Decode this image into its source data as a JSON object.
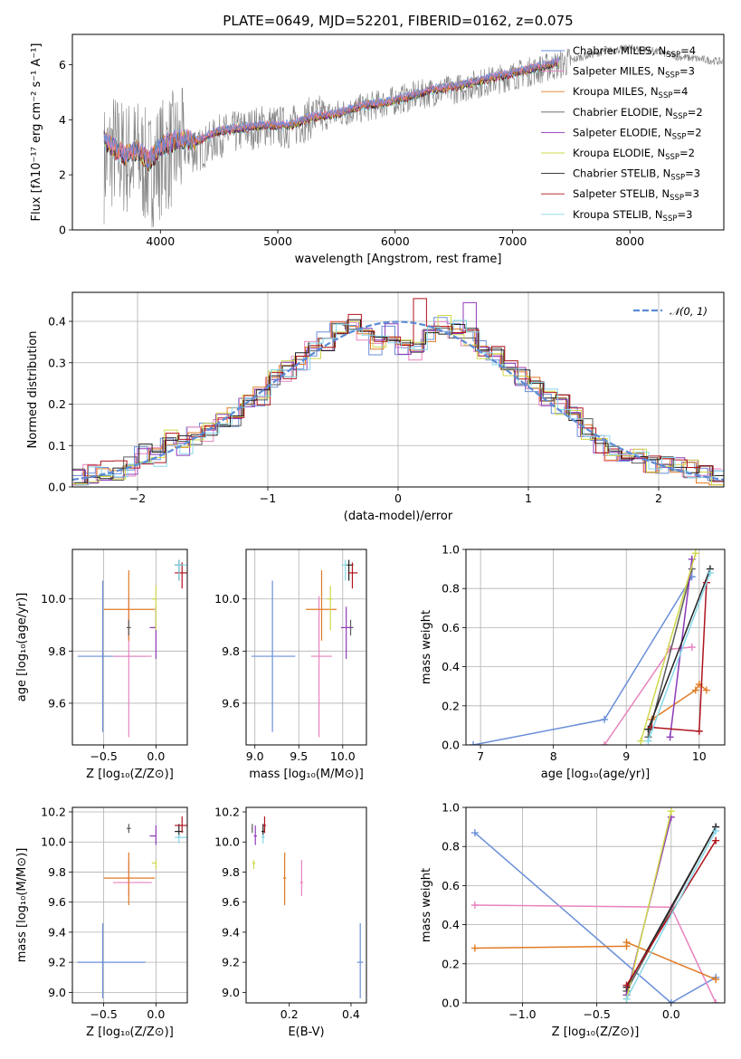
{
  "figure_title": "PLATE=0649, MJD=52201, FIBERID=0162, z=0.075",
  "colors": {
    "Chabrier MILES": "#6a8fd8",
    "Salpeter MILES": "#e883bf",
    "Kroupa MILES": "#e07b24",
    "Chabrier ELODIE": "#5a5a5a",
    "Salpeter ELODIE": "#8d3ab8",
    "Kroupa ELODIE": "#cfd84a",
    "Chabrier STELIB": "#222222",
    "Salpeter STELIB": "#b0141e",
    "Kroupa STELIB": "#86d8ea",
    "data": "#808080"
  },
  "chart_data": [
    {
      "id": "spectrum",
      "type": "line",
      "title": "PLATE=0649, MJD=52201, FIBERID=0162, z=0.075",
      "xlabel": "wavelength [Angstrom, rest frame]",
      "ylabel": "Flux [fλ10⁻¹⁷ erg cm⁻² s⁻¹ A⁻¹]",
      "xlim": [
        3250,
        8800
      ],
      "ylim": [
        0,
        7.1
      ],
      "xticks": [
        4000,
        5000,
        6000,
        7000,
        8000
      ],
      "yticks": [
        0,
        2,
        4,
        6
      ],
      "grid": false,
      "legend_position": "right",
      "legend": [
        "Chabrier MILES, N_SSP=4",
        "Salpeter MILES, N_SSP=3",
        "Kroupa MILES, N_SSP=4",
        "Chabrier ELODIE, N_SSP=2",
        "Salpeter ELODIE, N_SSP=2",
        "Kroupa ELODIE, N_SSP=2",
        "Chabrier STELIB, N_SSP=3",
        "Salpeter STELIB, N_SSP=3",
        "Kroupa STELIB, N_SSP=3"
      ],
      "data_series": {
        "name": "data",
        "x": [
          3520,
          3600,
          3700,
          3800,
          3900,
          4000,
          4100,
          4200,
          4300,
          4500,
          4700,
          4900,
          5100,
          5300,
          5500,
          5700,
          5900,
          6100,
          6300,
          6500,
          6700,
          6900,
          7100,
          7300,
          7400,
          7600,
          7800,
          8000,
          8200,
          8400,
          8600,
          8800
        ],
        "y": [
          2.4,
          2.9,
          2.6,
          2.7,
          2.1,
          2.6,
          2.9,
          3.0,
          2.8,
          3.4,
          3.6,
          3.8,
          3.7,
          4.1,
          4.2,
          4.4,
          4.6,
          4.8,
          5.0,
          5.1,
          5.3,
          5.5,
          5.7,
          5.9,
          6.0,
          6.3,
          6.5,
          6.6,
          6.5,
          6.3,
          6.2,
          6.1
        ]
      },
      "model_series_x": [
        3520,
        3600,
        3700,
        3800,
        3900,
        4000,
        4100,
        4200,
        4300,
        4500,
        4700,
        4900,
        5100,
        5300,
        5500,
        5700,
        5900,
        6100,
        6300,
        6500,
        6700,
        6900,
        7100,
        7300,
        7400
      ],
      "model_series_y": [
        3.3,
        3.0,
        2.7,
        2.9,
        2.5,
        3.0,
        3.2,
        3.3,
        3.2,
        3.6,
        3.7,
        3.8,
        3.8,
        4.1,
        4.2,
        4.5,
        4.6,
        4.8,
        5.1,
        5.2,
        5.4,
        5.6,
        5.8,
        6.0,
        6.1
      ]
    },
    {
      "id": "residuals",
      "type": "histogram",
      "xlabel": "(data-model)/error",
      "ylabel": "Normed distribution",
      "xlim": [
        -2.5,
        2.5
      ],
      "ylim": [
        0,
        0.47
      ],
      "xticks": [
        -2,
        -1,
        0,
        1,
        2
      ],
      "yticks": [
        0.0,
        0.1,
        0.2,
        0.3,
        0.4
      ],
      "grid": true,
      "legend_position": "top-right",
      "legend": [
        "𝒩(0, 1)"
      ],
      "bin_width": 0.1,
      "bin_start": -2.5,
      "bins_blue": [
        0.02,
        0.03,
        0.04,
        0.04,
        0.05,
        0.08,
        0.07,
        0.12,
        0.1,
        0.12,
        0.13,
        0.17,
        0.17,
        0.21,
        0.22,
        0.26,
        0.28,
        0.3,
        0.33,
        0.35,
        0.39,
        0.4,
        0.37,
        0.34,
        0.37,
        0.34,
        0.33,
        0.37,
        0.39,
        0.38,
        0.36,
        0.33,
        0.32,
        0.28,
        0.27,
        0.24,
        0.22,
        0.2,
        0.17,
        0.14,
        0.1,
        0.08,
        0.07,
        0.07,
        0.05,
        0.05,
        0.05,
        0.04,
        0.03,
        0.02
      ],
      "normal_curve": "N(0,1)"
    },
    {
      "id": "age_vs_Z",
      "type": "errorbar",
      "xlabel": "Z [log₁₀(Z/Z⊙)]",
      "ylabel": "age  [log₁₀(age/yr)]",
      "xlim": [
        -0.8,
        0.3
      ],
      "ylim": [
        9.44,
        10.19
      ],
      "xticks": [
        -0.5,
        0.0
      ],
      "yticks": [
        9.6,
        9.8,
        10.0
      ],
      "grid": true
    },
    {
      "id": "age_vs_mass",
      "type": "errorbar",
      "xlabel": "mass [log₁₀(M/M⊙)]",
      "ylabel": "",
      "xlim": [
        8.9,
        10.27
      ],
      "ylim": [
        9.44,
        10.19
      ],
      "xticks": [
        9.0,
        9.5,
        10.0
      ],
      "yticks": [
        9.6,
        9.8,
        10.0
      ],
      "grid": true
    },
    {
      "id": "weight_vs_age",
      "type": "line",
      "xlabel": "age  [log₁₀(age/yr)]",
      "ylabel": "mass weight",
      "xlim": [
        6.8,
        10.35
      ],
      "ylim": [
        0,
        1.0
      ],
      "xticks": [
        7,
        8,
        9,
        10
      ],
      "yticks": [
        0.0,
        0.2,
        0.4,
        0.6,
        0.8,
        1.0
      ],
      "grid": true
    },
    {
      "id": "mass_vs_Z",
      "type": "errorbar",
      "xlabel": "Z [log₁₀(Z/Z⊙)]",
      "ylabel": "mass [log₁₀(M/M⊙)]",
      "xlim": [
        -0.8,
        0.3
      ],
      "ylim": [
        8.93,
        10.23
      ],
      "xticks": [
        -0.5,
        0.0
      ],
      "yticks": [
        9.0,
        9.2,
        9.4,
        9.6,
        9.8,
        10.0,
        10.2
      ],
      "grid": true
    },
    {
      "id": "mass_vs_EBV",
      "type": "errorbar",
      "xlabel": "E(B-V)",
      "ylabel": "",
      "xlim": [
        0.06,
        0.45
      ],
      "ylim": [
        8.93,
        10.23
      ],
      "xticks": [
        0.2,
        0.4
      ],
      "yticks": [
        9.0,
        9.2,
        9.4,
        9.6,
        9.8,
        10.0,
        10.2
      ],
      "grid": false
    },
    {
      "id": "weight_vs_Z",
      "type": "line",
      "xlabel": "Z [log₁₀(Z/Z⊙)]",
      "ylabel": "mass weight",
      "xlim": [
        -1.38,
        0.36
      ],
      "ylim": [
        0,
        1.0
      ],
      "xticks": [
        -1.0,
        -0.5,
        0.0
      ],
      "yticks": [
        0.0,
        0.2,
        0.4,
        0.6,
        0.8,
        1.0
      ],
      "grid": true
    }
  ],
  "fits": [
    {
      "name": "Chabrier MILES",
      "age": [
        9.78,
        9.49,
        10.07
      ],
      "Z": [
        -0.51,
        -0.75,
        -0.1
      ],
      "mass": [
        9.2,
        8.96,
        9.46
      ],
      "ebv": [
        0.43,
        0.42,
        0.44
      ],
      "w_age": [
        [
          6.9,
          0.0
        ],
        [
          8.7,
          0.13
        ],
        [
          9.9,
          0.86
        ]
      ],
      "w_Z": [
        [
          -1.32,
          0.87
        ],
        [
          0.0,
          0.0
        ],
        [
          0.3,
          0.13
        ]
      ]
    },
    {
      "name": "Salpeter MILES",
      "age": [
        9.78,
        9.47,
        10.01
      ],
      "Z": [
        -0.26,
        -0.41,
        -0.04
      ],
      "mass": [
        9.73,
        9.64,
        9.88
      ],
      "ebv": [
        0.24,
        0.235,
        0.245
      ],
      "w_age": [
        [
          8.7,
          0.0
        ],
        [
          9.6,
          0.49
        ],
        [
          9.9,
          0.5
        ]
      ],
      "w_Z": [
        [
          -1.32,
          0.5
        ],
        [
          0.0,
          0.49
        ],
        [
          0.3,
          0.0
        ]
      ]
    },
    {
      "name": "Kroupa MILES",
      "age": [
        9.96,
        9.84,
        10.11
      ],
      "Z": [
        -0.26,
        -0.5,
        -0.01
      ],
      "mass": [
        9.76,
        9.58,
        9.93
      ],
      "ebv": [
        0.185,
        0.18,
        0.19
      ],
      "w_age": [
        [
          9.35,
          0.13
        ],
        [
          9.95,
          0.28
        ],
        [
          10.0,
          0.31
        ],
        [
          10.1,
          0.28
        ]
      ],
      "w_Z": [
        [
          -1.32,
          0.28
        ],
        [
          -0.3,
          0.29
        ],
        [
          -0.3,
          0.31
        ],
        [
          0.3,
          0.12
        ]
      ]
    },
    {
      "name": "Chabrier ELODIE",
      "age": [
        9.89,
        9.86,
        9.92
      ],
      "Z": [
        -0.26,
        -0.28,
        -0.24
      ],
      "mass": [
        10.09,
        10.06,
        10.12
      ],
      "ebv": [
        0.08,
        0.078,
        0.082
      ],
      "w_age": [
        [
          9.3,
          0.04
        ],
        [
          9.9,
          0.9
        ]
      ],
      "w_Z": [
        [
          -0.3,
          0.06
        ],
        [
          0.3,
          0.9
        ]
      ]
    },
    {
      "name": "Salpeter ELODIE",
      "age": [
        9.89,
        9.77,
        9.97
      ],
      "Z": [
        0.0,
        -0.06,
        0.0
      ],
      "mass": [
        10.04,
        9.98,
        10.11
      ],
      "ebv": [
        0.09,
        0.085,
        0.095
      ],
      "w_age": [
        [
          9.6,
          0.04
        ],
        [
          9.9,
          0.95
        ]
      ],
      "w_Z": [
        [
          -0.3,
          0.04
        ],
        [
          0.0,
          0.95
        ]
      ]
    },
    {
      "name": "Kroupa ELODIE",
      "age": [
        10.0,
        9.88,
        10.05
      ],
      "Z": [
        0.0,
        -0.04,
        0.0
      ],
      "mass": [
        9.86,
        9.82,
        9.88
      ],
      "ebv": [
        0.085,
        0.08,
        0.09
      ],
      "w_age": [
        [
          9.2,
          0.02
        ],
        [
          9.95,
          0.98
        ]
      ],
      "w_Z": [
        [
          -0.3,
          0.02
        ],
        [
          0.0,
          0.98
        ]
      ]
    },
    {
      "name": "Chabrier STELIB",
      "age": [
        10.13,
        10.07,
        10.15
      ],
      "Z": [
        0.22,
        0.18,
        0.26
      ],
      "mass": [
        10.07,
        10.03,
        10.12
      ],
      "ebv": [
        0.115,
        0.11,
        0.12
      ],
      "w_age": [
        [
          9.3,
          0.08
        ],
        [
          10.15,
          0.9
        ]
      ],
      "w_Z": [
        [
          -0.3,
          0.08
        ],
        [
          0.3,
          0.9
        ]
      ]
    },
    {
      "name": "Salpeter STELIB",
      "age": [
        10.1,
        10.04,
        10.14
      ],
      "Z": [
        0.25,
        0.18,
        0.3
      ],
      "mass": [
        10.11,
        10.06,
        10.17
      ],
      "ebv": [
        0.12,
        0.115,
        0.125
      ],
      "w_age": [
        [
          9.35,
          0.09
        ],
        [
          10.0,
          0.07
        ],
        [
          10.1,
          0.83
        ]
      ],
      "w_Z": [
        [
          -0.3,
          0.09
        ],
        [
          0.3,
          0.83
        ]
      ]
    },
    {
      "name": "Kroupa STELIB",
      "age": [
        10.13,
        10.07,
        10.15
      ],
      "Z": [
        0.22,
        0.18,
        0.3
      ],
      "mass": [
        10.03,
        9.99,
        10.05
      ],
      "ebv": [
        0.115,
        0.11,
        0.12
      ],
      "w_age": [
        [
          9.3,
          0.02
        ],
        [
          10.15,
          0.88
        ]
      ],
      "w_Z": [
        [
          -0.3,
          0.02
        ],
        [
          0.3,
          0.88
        ]
      ]
    }
  ]
}
